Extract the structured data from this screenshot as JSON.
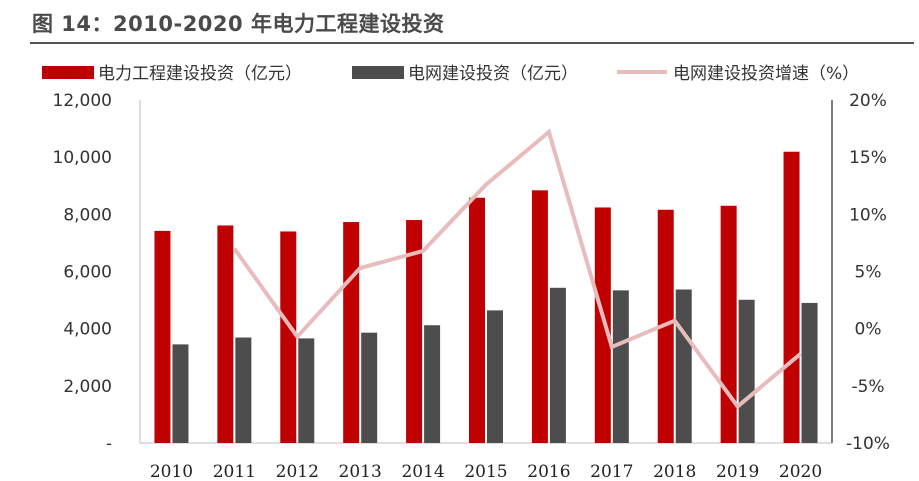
{
  "figure_title": "图 14：2010-2020 年电力工程建设投资",
  "chart_data": {
    "type": "bar",
    "categories": [
      "2010",
      "2011",
      "2012",
      "2013",
      "2014",
      "2015",
      "2016",
      "2017",
      "2018",
      "2019",
      "2020"
    ],
    "series": [
      {
        "name": "电力工程建设投资（亿元）",
        "kind": "bar",
        "axis": "left",
        "color": "#c00000",
        "values": [
          7420,
          7610,
          7400,
          7730,
          7800,
          8580,
          8840,
          8240,
          8160,
          8300,
          10190
        ]
      },
      {
        "name": "电网建设投资（亿元）",
        "kind": "bar",
        "axis": "left",
        "color": "#4d4d4d",
        "values": [
          3450,
          3690,
          3660,
          3860,
          4120,
          4640,
          5430,
          5340,
          5370,
          5010,
          4900
        ]
      },
      {
        "name": "电网建设投资增速（%）",
        "kind": "line",
        "axis": "right",
        "color": "#e8bcbc",
        "values": [
          null,
          7.0,
          -0.7,
          5.3,
          6.8,
          12.6,
          17.2,
          -1.6,
          0.7,
          -6.8,
          -2.2
        ]
      }
    ],
    "y_left": {
      "min": 0,
      "max": 12000,
      "ticks": [
        "-",
        "2,000",
        "4,000",
        "6,000",
        "8,000",
        "10,000",
        "12,000"
      ],
      "tick_values": [
        0,
        2000,
        4000,
        6000,
        8000,
        10000,
        12000
      ]
    },
    "y_right": {
      "min": -10,
      "max": 20,
      "ticks": [
        "-10%",
        "-5%",
        "0%",
        "5%",
        "10%",
        "15%",
        "20%"
      ],
      "tick_values": [
        -10,
        -5,
        0,
        5,
        10,
        15,
        20
      ]
    },
    "legend_position": "top",
    "grid": false
  }
}
